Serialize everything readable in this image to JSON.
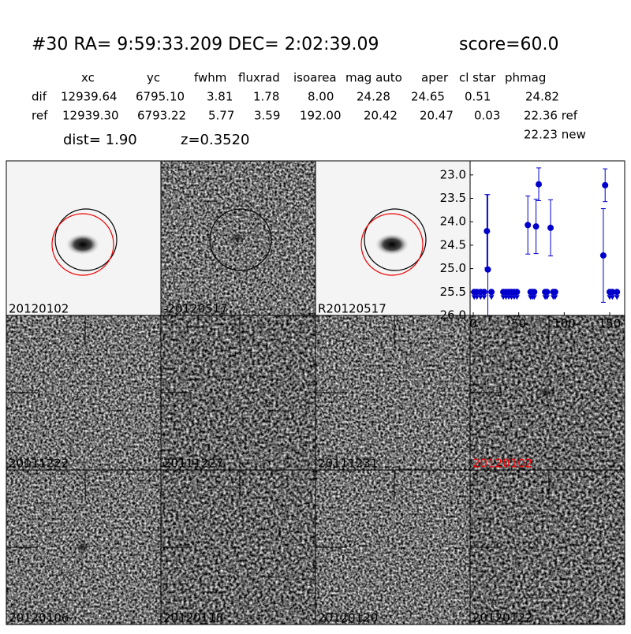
{
  "header": {
    "title": "#30   RA= 9:59:33.209 DEC= 2:02:39.09",
    "score": "score=60.0",
    "dist": "dist=  1.90",
    "z": "z=0.3520"
  },
  "table": {
    "columns": [
      "xc",
      "yc",
      "fwhm",
      "fluxrad",
      "isoarea",
      "mag auto",
      "aper",
      "cl star",
      "phmag"
    ],
    "rows": [
      [
        "dif",
        "12939.64",
        "6795.10",
        "3.81",
        "1.78",
        "8.00",
        "24.28",
        "24.65",
        "0.51",
        "24.82"
      ],
      [
        "ref",
        "12939.30",
        "6793.22",
        "5.77",
        "3.59",
        "192.00",
        "20.42",
        "20.47",
        "0.03",
        "22.36 ref"
      ]
    ],
    "extra": "22.23 new"
  },
  "stamps": [
    {
      "label": "20120102"
    },
    {
      "label": "-20120517"
    },
    {
      "label": "R20120517"
    },
    {
      "label": "20111222"
    },
    {
      "label": "20111227"
    },
    {
      "label": "20111231"
    },
    {
      "label": "20120102",
      "color": "#ff0000"
    },
    {
      "label": "20120106"
    },
    {
      "label": "20120118"
    },
    {
      "label": "20120120"
    },
    {
      "label": "20120122"
    }
  ],
  "plot": {
    "xlim": [
      -3.5,
      166.5
    ],
    "ylim": [
      26.0,
      22.7
    ],
    "xticks": [
      0,
      50,
      100,
      150
    ],
    "yticks": [
      {
        "value": 23,
        "label": "23.0"
      },
      {
        "value": 23.5,
        "label": "23.5"
      },
      {
        "value": 24,
        "label": "24.0"
      },
      {
        "value": 24.5,
        "label": "24.5"
      },
      {
        "value": 25,
        "label": "25.0"
      },
      {
        "value": 25.5,
        "label": "25.5"
      },
      {
        "value": 26,
        "label": "26.0"
      }
    ],
    "color": "#0000cc",
    "detections": {
      "x": [
        15,
        16,
        60,
        69,
        72,
        85,
        143,
        145
      ],
      "y": [
        24.2,
        25.02,
        24.07,
        24.1,
        23.2,
        24.13,
        24.72,
        23.22
      ],
      "err": [
        0.78,
        1.6,
        0.62,
        0.58,
        0.35,
        0.6,
        1.0,
        0.35
      ]
    },
    "limits": {
      "x": [
        1,
        4,
        8,
        12,
        20,
        33,
        36,
        39,
        42,
        45,
        48,
        63,
        65,
        67,
        79,
        81,
        88,
        90,
        150,
        153,
        158
      ],
      "y": [
        25.5,
        25.5,
        25.5,
        25.5,
        25.5,
        25.5,
        25.5,
        25.5,
        25.5,
        25.5,
        25.5,
        25.5,
        25.5,
        25.5,
        25.5,
        25.5,
        25.5,
        25.5,
        25.5,
        25.5,
        25.5
      ]
    }
  }
}
